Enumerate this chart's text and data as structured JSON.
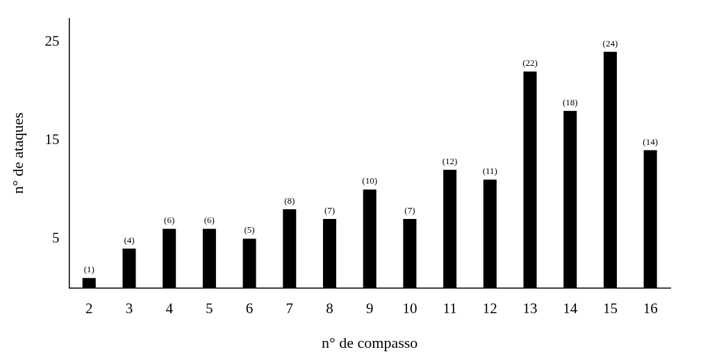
{
  "chart_data": {
    "type": "bar",
    "xlabel": "n° de compasso",
    "ylabel": "n° de ataques",
    "categories": [
      "2",
      "3",
      "4",
      "5",
      "6",
      "7",
      "8",
      "9",
      "10",
      "11",
      "12",
      "13",
      "14",
      "15",
      "16"
    ],
    "values": [
      1,
      4,
      6,
      6,
      5,
      8,
      7,
      10,
      7,
      12,
      11,
      22,
      18,
      24,
      14
    ],
    "value_labels": [
      "(1)",
      "(4)",
      "(6)",
      "(6)",
      "(5)",
      "(8)",
      "(7)",
      "(10)",
      "(7)",
      "(12)",
      "(11)",
      "(22)",
      "(18)",
      "(24)",
      "(14)"
    ],
    "color": "#000000",
    "ylim": [
      0,
      27.4
    ],
    "yticks": [
      5,
      15,
      25
    ],
    "grid": false,
    "legend": false
  }
}
